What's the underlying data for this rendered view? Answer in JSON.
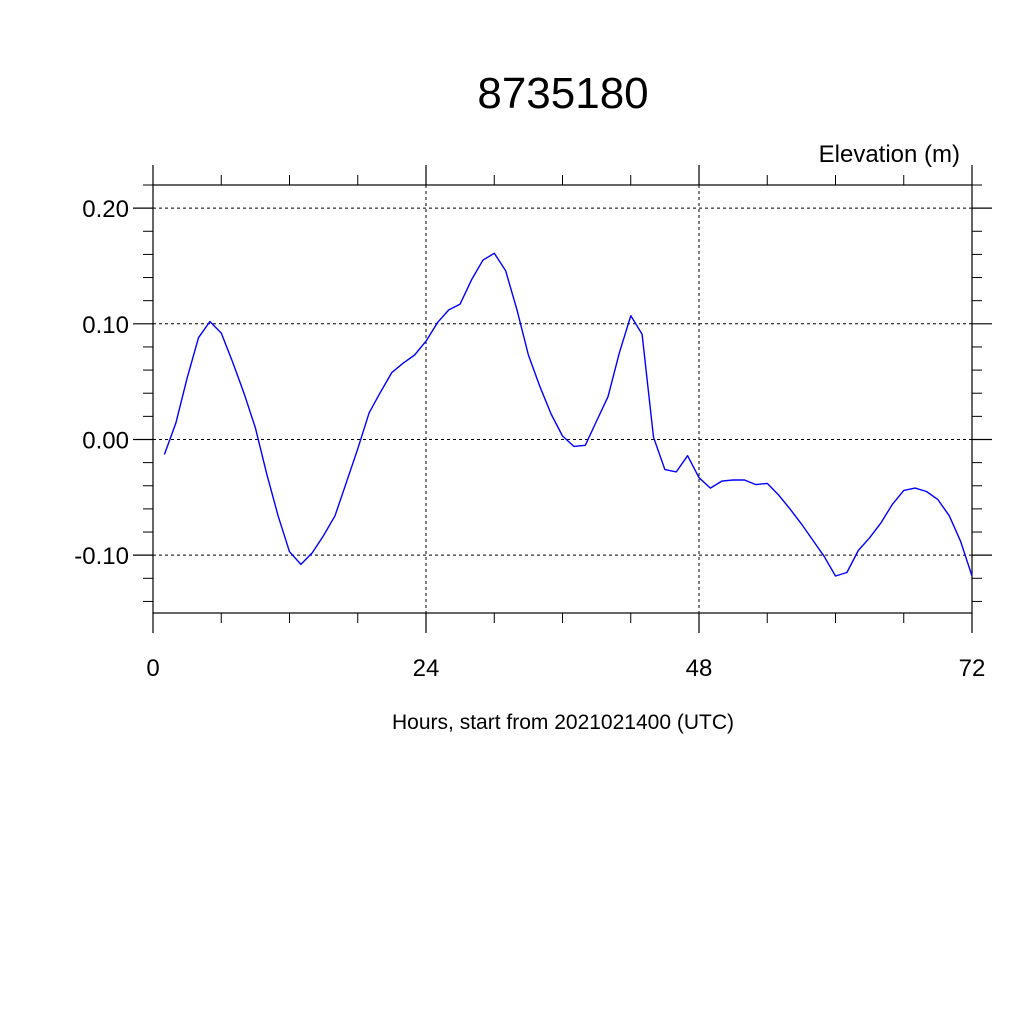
{
  "chart_data": {
    "type": "line",
    "title": "8735180",
    "units_label": "Elevation (m)",
    "xlabel": "Hours, start from 2021021400 (UTC)",
    "xlim": [
      0,
      72
    ],
    "ylim": [
      -0.15,
      0.22
    ],
    "x_ticks": [
      {
        "value": 0,
        "label": "0"
      },
      {
        "value": 24,
        "label": "24"
      },
      {
        "value": 48,
        "label": "48"
      },
      {
        "value": 72,
        "label": "72"
      }
    ],
    "y_ticks": [
      {
        "value": 0.2,
        "label": "0.20"
      },
      {
        "value": 0.1,
        "label": "0.10"
      },
      {
        "value": 0.0,
        "label": "0.00"
      },
      {
        "value": -0.1,
        "label": "-0.10"
      }
    ],
    "grid": true,
    "series_color": "#0000ff",
    "series": [
      {
        "x": [
          1,
          2,
          3,
          4,
          5,
          6,
          7,
          8,
          9,
          10,
          11,
          12,
          13,
          14,
          15,
          16,
          17,
          18,
          19,
          20,
          21,
          22,
          23,
          24,
          25,
          26,
          27,
          28,
          29,
          30,
          31,
          32,
          33,
          34,
          35,
          36,
          37,
          38,
          39,
          40,
          41,
          42,
          43,
          44,
          45,
          46,
          47,
          48,
          49,
          50,
          51,
          52,
          53,
          54,
          55,
          56,
          57,
          58,
          59,
          60,
          61,
          62,
          63,
          64,
          65,
          66,
          67,
          68,
          69,
          70,
          71,
          72
        ],
        "y": [
          -0.013,
          0.014,
          0.053,
          0.088,
          0.102,
          0.092,
          0.067,
          0.04,
          0.01,
          -0.03,
          -0.066,
          -0.097,
          -0.108,
          -0.098,
          -0.083,
          -0.066,
          -0.037,
          -0.008,
          0.023,
          0.041,
          0.058,
          0.066,
          0.073,
          0.085,
          0.101,
          0.112,
          0.117,
          0.138,
          0.155,
          0.161,
          0.146,
          0.112,
          0.073,
          0.046,
          0.022,
          0.003,
          -0.006,
          -0.005,
          0.016,
          0.037,
          0.075,
          0.107,
          0.091,
          0.002,
          -0.026,
          -0.028,
          -0.014,
          -0.033,
          -0.042,
          -0.036,
          -0.035,
          -0.035,
          -0.039,
          -0.038,
          -0.048,
          -0.06,
          -0.073,
          -0.087,
          -0.101,
          -0.118,
          -0.115,
          -0.096,
          -0.085,
          -0.072,
          -0.056,
          -0.044,
          -0.042,
          -0.045,
          -0.052,
          -0.066,
          -0.088,
          -0.118
        ]
      }
    ]
  }
}
